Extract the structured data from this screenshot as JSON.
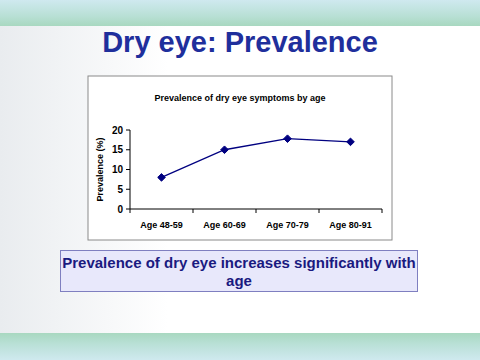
{
  "slide": {
    "title": "Dry eye: Prevalence",
    "caption": "Prevalence of dry eye increases significantly with age"
  },
  "chart_data": {
    "type": "line",
    "title": "Prevalence of dry eye symptoms by age",
    "y_label": "Prevalence (%)",
    "categories": [
      "Age 48-59",
      "Age 60-69",
      "Age 70-79",
      "Age 80-91"
    ],
    "values": [
      8,
      15,
      17.8,
      17
    ],
    "color": "#000080",
    "marker": "diamond",
    "ylim": [
      0,
      20
    ],
    "yticks": [
      0,
      5,
      10,
      15,
      20
    ],
    "grid": false
  }
}
